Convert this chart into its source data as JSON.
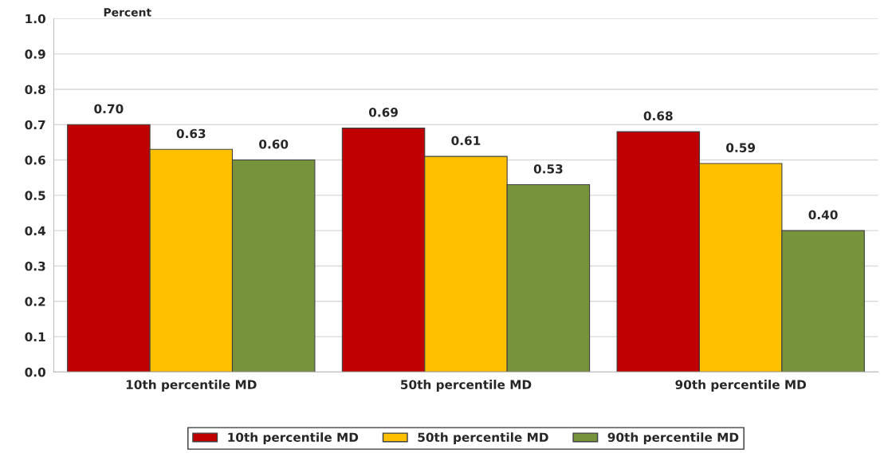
{
  "chart_data": {
    "type": "bar",
    "ylabel": "Percent",
    "categories": [
      "10th percentile MD",
      "50th percentile MD",
      "90th percentile MD"
    ],
    "series": [
      {
        "name": "10th percentile MD",
        "color": "#c00000",
        "values": [
          0.7,
          0.69,
          0.68
        ],
        "value_labels": [
          "0.70",
          "0.69",
          "0.68"
        ]
      },
      {
        "name": "50th percentile MD",
        "color": "#ffc000",
        "values": [
          0.63,
          0.61,
          0.59
        ],
        "value_labels": [
          "0.63",
          "0.61",
          "0.59"
        ]
      },
      {
        "name": "90th percentile MD",
        "color": "#77933c",
        "values": [
          0.6,
          0.53,
          0.4
        ],
        "value_labels": [
          "0.60",
          "0.53",
          "0.40"
        ]
      }
    ],
    "ylim": [
      0,
      1.0
    ],
    "yticks": [
      {
        "value": 0,
        "label": "0.0"
      },
      0.1,
      0.2,
      0.3,
      0.4,
      0.5,
      0.6,
      0.7,
      0.8,
      0.9,
      {
        "value": 1,
        "label": "1.0"
      }
    ],
    "grid": "y",
    "legend": "bottom"
  }
}
